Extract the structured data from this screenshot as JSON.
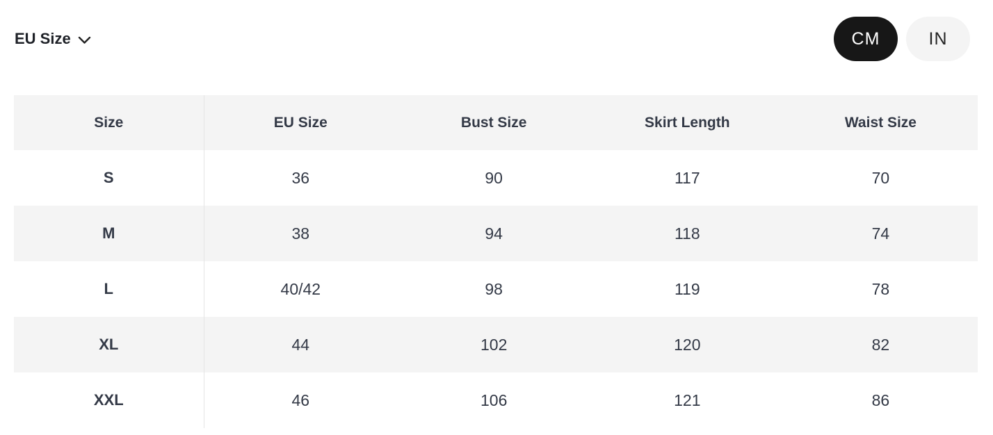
{
  "controls": {
    "size_standard": {
      "label": "EU Size"
    },
    "unit_toggle": {
      "options": [
        {
          "label": "CM",
          "active": true
        },
        {
          "label": "IN",
          "active": false
        }
      ]
    }
  },
  "icons": {
    "size_standard_chevron": "chevron-down"
  },
  "table": {
    "columns": [
      "Size",
      "EU Size",
      "Bust Size",
      "Skirt Length",
      "Waist Size"
    ],
    "rows": [
      [
        "S",
        "36",
        "90",
        "117",
        "70"
      ],
      [
        "M",
        "38",
        "94",
        "118",
        "74"
      ],
      [
        "L",
        "40/42",
        "98",
        "119",
        "78"
      ],
      [
        "XL",
        "44",
        "102",
        "120",
        "82"
      ],
      [
        "XXL",
        "46",
        "106",
        "121",
        "86"
      ]
    ]
  },
  "colors": {
    "pill_active_bg": "#171717",
    "pill_active_text": "#ffffff",
    "pill_inactive_bg": "#f4f4f4",
    "pill_inactive_text": "#242424",
    "row_alt_bg": "#f4f4f4",
    "table_text": "#333946",
    "column_divider": "#e4e4e4"
  }
}
